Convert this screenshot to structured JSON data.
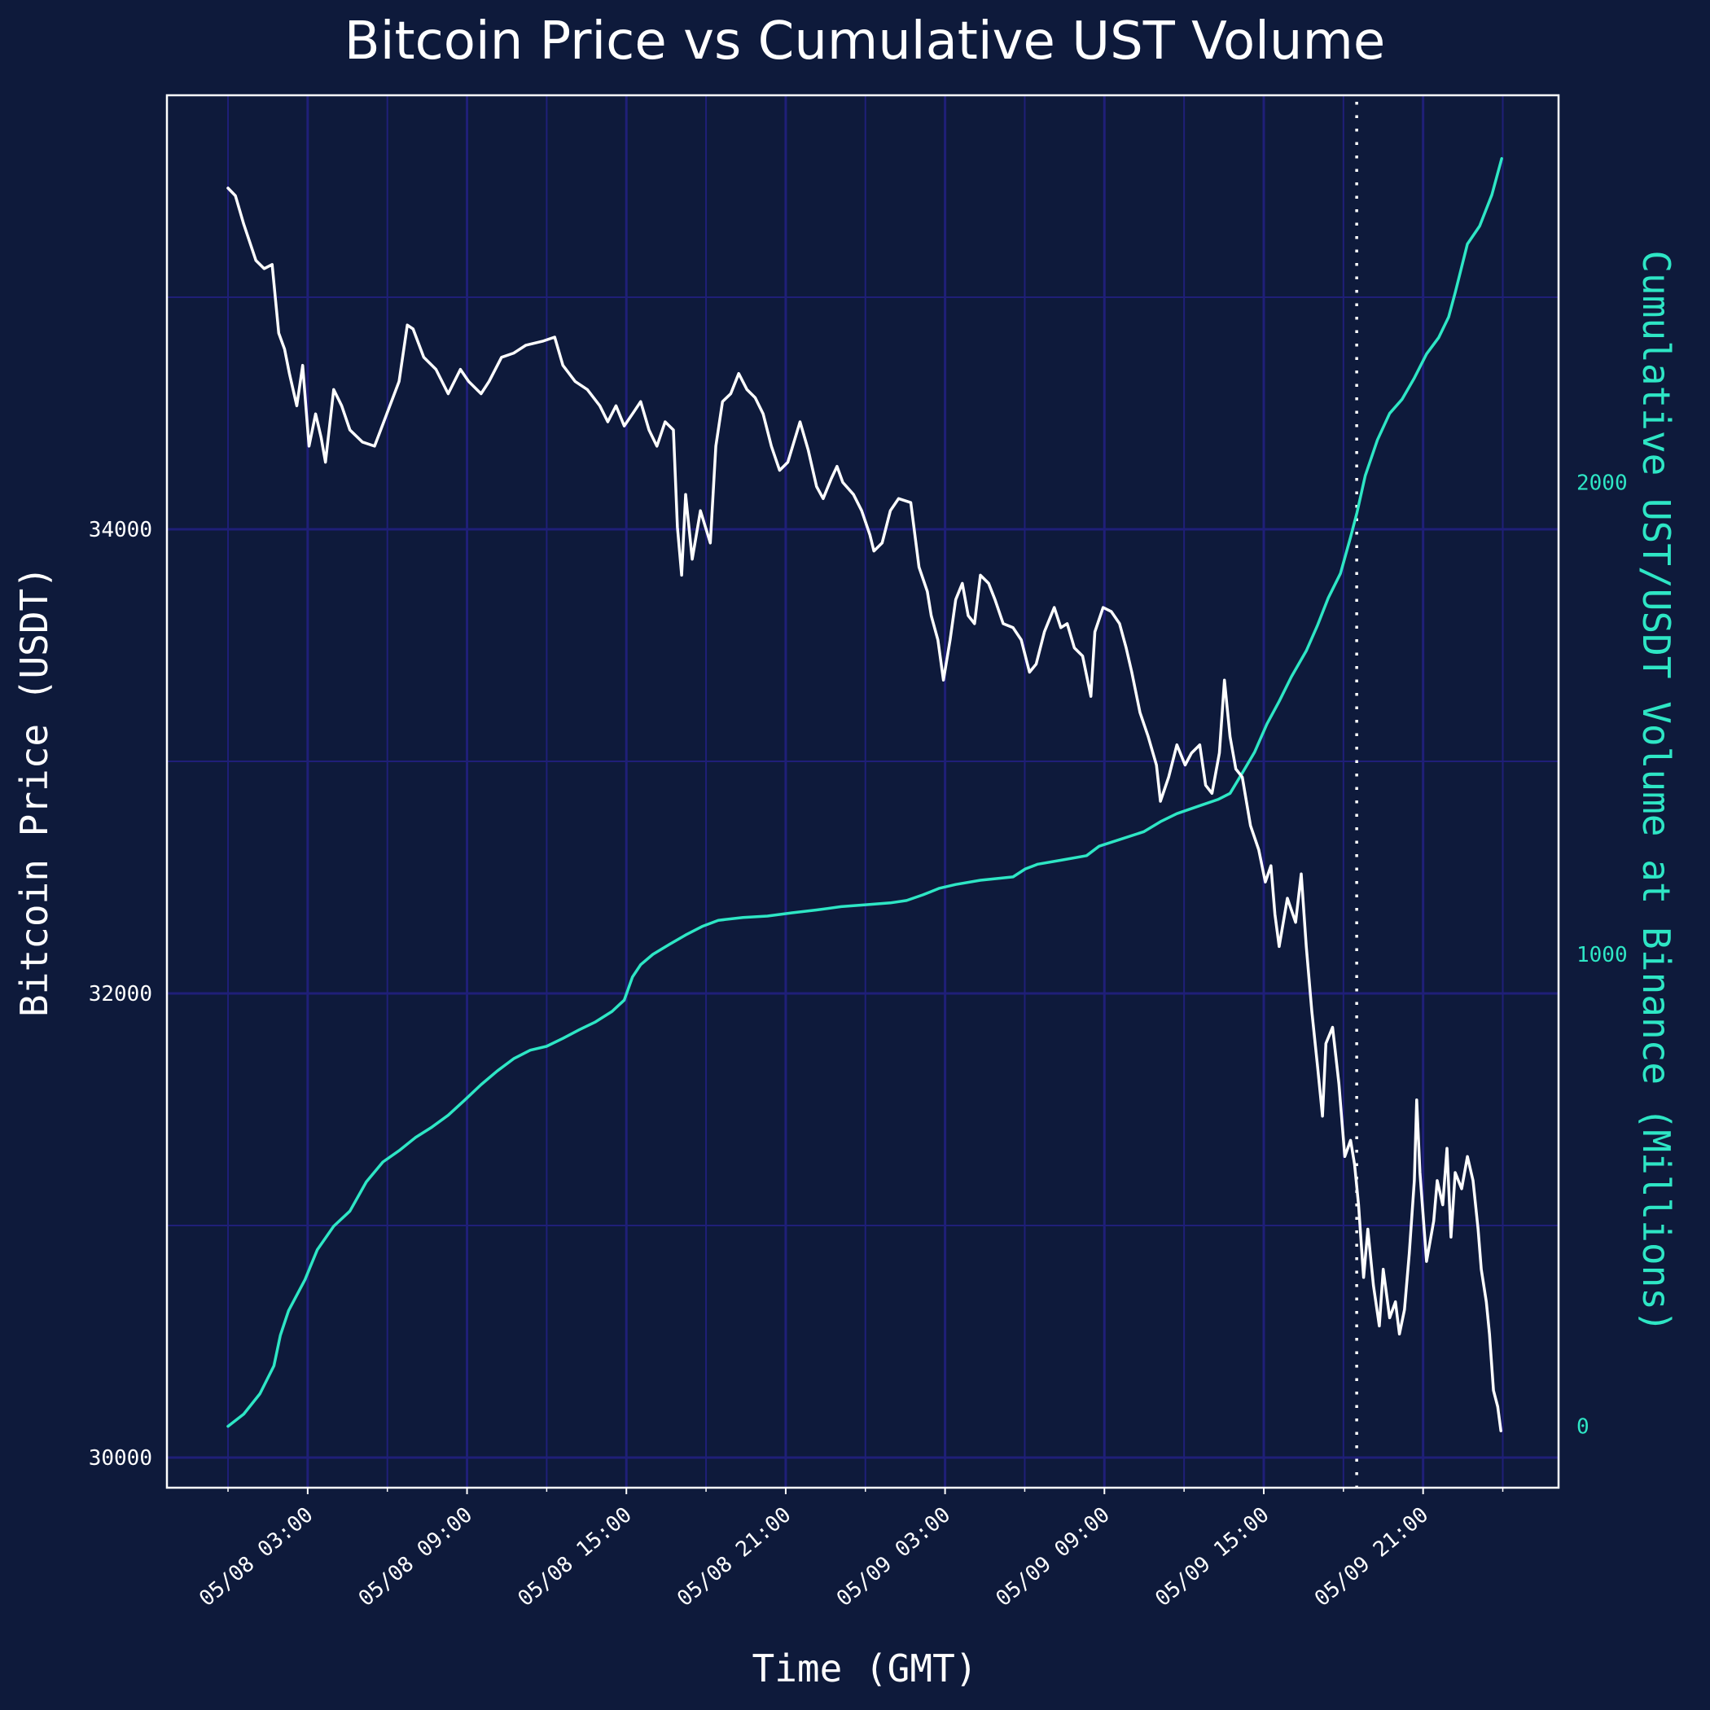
{
  "chart_data": {
    "type": "line",
    "title": "Bitcoin Price vs Cumulative UST Volume",
    "xlabel": "Time (GMT)",
    "ylabel": "Bitcoin Price (USDT)",
    "ylabel_right": "Cumulative UST/USDT Volume at Binance (Millions)",
    "x_unit": "hours since 05/08 00:00 GMT",
    "xlim": [
      -2.3,
      50.1
    ],
    "ylim": [
      29870,
      35870
    ],
    "ylim_right": [
      -130,
      2820
    ],
    "grid": true,
    "x_ticks": [
      {
        "value": 3,
        "label": "05/08 03:00"
      },
      {
        "value": 9,
        "label": "05/08 09:00"
      },
      {
        "value": 15,
        "label": "05/08 15:00"
      },
      {
        "value": 21,
        "label": "05/08 21:00"
      },
      {
        "value": 27,
        "label": "05/09 03:00"
      },
      {
        "value": 33,
        "label": "05/09 09:00"
      },
      {
        "value": 39,
        "label": "05/09 15:00"
      },
      {
        "value": 45,
        "label": "05/09 21:00"
      }
    ],
    "x_minor_ticks": [
      0,
      6,
      12,
      18,
      24,
      30,
      36,
      42,
      48
    ],
    "y_ticks_left": [
      {
        "value": 30000,
        "label": "30000"
      },
      {
        "value": 32000,
        "label": "32000"
      },
      {
        "value": 34000,
        "label": "34000"
      }
    ],
    "y_minor_ticks_left": [
      31000,
      33000,
      35000
    ],
    "y_ticks_right": [
      {
        "value": 0,
        "label": "0"
      },
      {
        "value": 1000,
        "label": "1000"
      },
      {
        "value": 2000,
        "label": "2000"
      }
    ],
    "vline": {
      "x": 42.5,
      "style": "dotted",
      "color": "#ffffff"
    },
    "series": [
      {
        "name": "Bitcoin Price (USDT)",
        "axis": "left",
        "color": "#ffffff",
        "x": [
          0,
          0.28,
          0.59,
          1.05,
          1.36,
          1.66,
          1.91,
          2.13,
          2.31,
          2.59,
          2.81,
          3.05,
          3.3,
          3.51,
          3.67,
          3.98,
          4.28,
          4.59,
          5.06,
          5.52,
          5.98,
          6.44,
          6.75,
          6.97,
          7.37,
          7.83,
          8.29,
          8.75,
          9.06,
          9.53,
          9.83,
          10.3,
          10.76,
          11.22,
          11.84,
          12.3,
          12.61,
          13.07,
          13.53,
          14.0,
          14.3,
          14.61,
          14.92,
          15.23,
          15.54,
          15.85,
          16.15,
          16.46,
          16.77,
          16.92,
          17.08,
          17.23,
          17.48,
          17.79,
          18.16,
          18.37,
          18.62,
          18.93,
          19.23,
          19.54,
          19.85,
          20.15,
          20.46,
          20.77,
          21.08,
          21.54,
          21.85,
          22.16,
          22.41,
          22.72,
          22.93,
          23.15,
          23.55,
          23.86,
          24.17,
          24.32,
          24.63,
          24.94,
          25.25,
          25.71,
          26.02,
          26.33,
          26.48,
          26.73,
          26.94,
          27.19,
          27.4,
          27.65,
          27.87,
          28.11,
          28.33,
          28.64,
          28.88,
          29.19,
          29.56,
          29.87,
          30.18,
          30.43,
          30.74,
          31.11,
          31.36,
          31.6,
          31.87,
          32.18,
          32.49,
          32.64,
          32.95,
          33.26,
          33.57,
          33.82,
          34.03,
          34.34,
          34.65,
          34.96,
          35.11,
          35.42,
          35.73,
          36.04,
          36.28,
          36.59,
          36.81,
          37.05,
          37.33,
          37.52,
          37.73,
          37.95,
          38.19,
          38.5,
          38.81,
          39.06,
          39.27,
          39.42,
          39.58,
          39.89,
          40.2,
          40.41,
          40.6,
          40.81,
          41.03,
          41.21,
          41.34,
          41.59,
          41.83,
          42.05,
          42.27,
          42.42,
          42.57,
          42.76,
          42.92,
          43.13,
          43.35,
          43.5,
          43.74,
          43.96,
          44.11,
          44.3,
          44.48,
          44.67,
          44.76,
          44.88,
          45.13,
          45.4,
          45.53,
          45.74,
          45.9,
          46.05,
          46.21,
          46.45,
          46.67,
          46.88,
          47.07,
          47.19,
          47.38,
          47.5,
          47.65,
          47.81,
          47.93
        ],
        "y": [
          35470,
          35437,
          35315,
          35158,
          35123,
          35141,
          34845,
          34776,
          34671,
          34532,
          34706,
          34358,
          34497,
          34393,
          34289,
          34602,
          34532,
          34428,
          34376,
          34358,
          34497,
          34637,
          34880,
          34863,
          34741,
          34689,
          34584,
          34689,
          34637,
          34584,
          34637,
          34741,
          34759,
          34793,
          34810,
          34828,
          34706,
          34637,
          34602,
          34532,
          34463,
          34532,
          34445,
          34497,
          34550,
          34428,
          34358,
          34463,
          34428,
          34010,
          33802,
          34150,
          33871,
          34080,
          33941,
          34358,
          34550,
          34584,
          34671,
          34602,
          34567,
          34497,
          34358,
          34254,
          34289,
          34463,
          34341,
          34184,
          34132,
          34219,
          34271,
          34202,
          34150,
          34080,
          33976,
          33906,
          33941,
          34080,
          34132,
          34115,
          33837,
          33732,
          33628,
          33523,
          33350,
          33523,
          33697,
          33767,
          33628,
          33593,
          33802,
          33767,
          33697,
          33593,
          33576,
          33523,
          33384,
          33419,
          33558,
          33663,
          33576,
          33593,
          33489,
          33454,
          33280,
          33558,
          33663,
          33645,
          33593,
          33489,
          33384,
          33210,
          33106,
          32984,
          32828,
          32932,
          33071,
          32984,
          33036,
          33071,
          32897,
          32862,
          33036,
          33350,
          33106,
          32967,
          32932,
          32723,
          32619,
          32480,
          32550,
          32341,
          32202,
          32410,
          32306,
          32515,
          32202,
          31923,
          31680,
          31471,
          31784,
          31854,
          31610,
          31297,
          31367,
          31263,
          31089,
          30776,
          30984,
          30741,
          30567,
          30811,
          30602,
          30671,
          30532,
          30637,
          30880,
          31193,
          31541,
          31228,
          30845,
          31019,
          31193,
          31089,
          31332,
          30950,
          31228,
          31158,
          31297,
          31193,
          30984,
          30811,
          30671,
          30532,
          30289,
          30219,
          30115
        ]
      },
      {
        "name": "Cumulative UST/USDT Volume (Millions)",
        "axis": "right",
        "color": "#2ee6c5",
        "x": [
          0,
          0.59,
          1.2,
          1.73,
          1.97,
          2.28,
          2.9,
          3.36,
          3.98,
          4.59,
          5.21,
          5.83,
          6.44,
          7.06,
          7.68,
          8.29,
          8.91,
          9.53,
          10.14,
          10.76,
          11.38,
          11.99,
          12.61,
          13.22,
          13.84,
          14.46,
          14.92,
          15.23,
          15.54,
          16.0,
          16.62,
          17.23,
          17.85,
          18.46,
          19.39,
          20.31,
          21.24,
          22.16,
          23.09,
          24.01,
          24.94,
          25.55,
          26.17,
          26.79,
          27.4,
          28.33,
          29.56,
          30.02,
          30.49,
          31.41,
          32.33,
          32.8,
          33.57,
          34.49,
          35.11,
          35.73,
          36.65,
          37.27,
          37.73,
          38.19,
          38.65,
          39.12,
          39.58,
          40.04,
          40.6,
          41.03,
          41.43,
          41.89,
          42.27,
          42.51,
          42.82,
          43.28,
          43.74,
          44.21,
          44.67,
          45.13,
          45.59,
          45.96,
          46.21,
          46.67,
          47.13,
          47.59,
          47.96
        ],
        "y": [
          0,
          26,
          69,
          128,
          193,
          245,
          311,
          374,
          424,
          456,
          518,
          560,
          584,
          612,
          634,
          659,
          691,
          724,
          753,
          779,
          797,
          805,
          822,
          840,
          857,
          879,
          903,
          952,
          978,
          1000,
          1021,
          1041,
          1059,
          1072,
          1078,
          1081,
          1088,
          1094,
          1101,
          1105,
          1109,
          1114,
          1126,
          1140,
          1148,
          1157,
          1164,
          1181,
          1191,
          1200,
          1209,
          1229,
          1243,
          1260,
          1281,
          1298,
          1316,
          1328,
          1341,
          1384,
          1428,
          1488,
          1536,
          1588,
          1643,
          1698,
          1755,
          1807,
          1884,
          1936,
          2014,
          2090,
          2146,
          2176,
          2221,
          2272,
          2307,
          2350,
          2402,
          2505,
          2543,
          2609,
          2686
        ]
      }
    ]
  },
  "colors": {
    "background": "#0e1a3b",
    "grid": "#1f1f78",
    "frame": "#ffffff",
    "price": "#ffffff",
    "volume": "#2ee6c5"
  }
}
